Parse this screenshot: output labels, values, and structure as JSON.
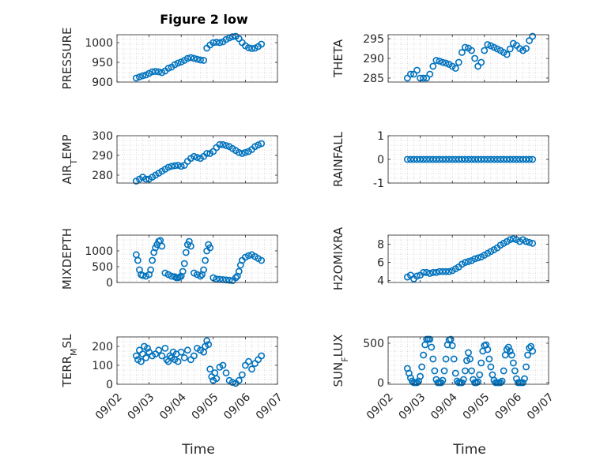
{
  "figure": {
    "title": "Figure 2 low",
    "xlabel": "Time"
  },
  "style": {
    "marker_color": "#0072BD",
    "axis_color": "#262626",
    "grid_color": "#d0d0d0"
  },
  "chart_data": [
    {
      "type": "scatter",
      "ylabel": "PRESSURE",
      "ylim": [
        900,
        1020
      ],
      "yticks": [
        900,
        950,
        1000
      ],
      "xlim": [
        2,
        7
      ],
      "xticks": [],
      "x": [
        2.6,
        2.7,
        2.8,
        2.9,
        3.0,
        3.1,
        3.2,
        3.3,
        3.4,
        3.5,
        3.6,
        3.7,
        3.8,
        3.9,
        4.0,
        4.1,
        4.2,
        4.3,
        4.4,
        4.5,
        4.6,
        4.7,
        4.8,
        4.9,
        5.0,
        5.1,
        5.2,
        5.3,
        5.4,
        5.5,
        5.6,
        5.7,
        5.8,
        5.9,
        6.0,
        6.1,
        6.2,
        6.3,
        6.4,
        6.5
      ],
      "y": [
        910,
        913,
        916,
        918,
        922,
        926,
        927,
        926,
        924,
        928,
        935,
        938,
        944,
        948,
        951,
        955,
        960,
        962,
        960,
        958,
        956,
        955,
        986,
        994,
        1000,
        1001,
        1000,
        1002,
        1008,
        1012,
        1015,
        1016,
        1010,
        1000,
        992,
        987,
        985,
        986,
        990,
        996
      ]
    },
    {
      "type": "scatter",
      "ylabel": "THETA",
      "ylim": [
        284,
        296
      ],
      "yticks": [
        285,
        290,
        295
      ],
      "xlim": [
        2,
        7
      ],
      "xticks": [],
      "x": [
        2.6,
        2.7,
        2.8,
        2.9,
        3.0,
        3.1,
        3.2,
        3.3,
        3.4,
        3.5,
        3.6,
        3.7,
        3.8,
        3.9,
        4.0,
        4.1,
        4.2,
        4.3,
        4.4,
        4.5,
        4.6,
        4.7,
        4.8,
        4.9,
        5.0,
        5.1,
        5.2,
        5.3,
        5.4,
        5.5,
        5.6,
        5.7,
        5.8,
        5.9,
        6.0,
        6.1,
        6.2,
        6.3,
        6.4,
        6.5
      ],
      "y": [
        285,
        286,
        286,
        287,
        285,
        285,
        285,
        286,
        288,
        289.5,
        289.3,
        289,
        288.8,
        288.5,
        288,
        287.5,
        289,
        291.5,
        292.8,
        292.6,
        292,
        290,
        288,
        289,
        292,
        293.5,
        293.2,
        292.8,
        292.4,
        292,
        291.5,
        291,
        292.4,
        293.8,
        293.3,
        292.5,
        292,
        292.5,
        294.5,
        295.6
      ]
    },
    {
      "type": "scatter",
      "ylabel": "AIR_T_EMP",
      "ylim": [
        276,
        300
      ],
      "yticks": [
        280,
        290,
        300
      ],
      "xlim": [
        2,
        7
      ],
      "xticks": [],
      "x": [
        2.6,
        2.7,
        2.8,
        2.9,
        3.0,
        3.1,
        3.2,
        3.3,
        3.4,
        3.5,
        3.6,
        3.7,
        3.8,
        3.9,
        4.0,
        4.1,
        4.2,
        4.3,
        4.4,
        4.5,
        4.6,
        4.7,
        4.8,
        4.9,
        5.0,
        5.1,
        5.2,
        5.3,
        5.4,
        5.5,
        5.6,
        5.7,
        5.8,
        5.9,
        6.0,
        6.1,
        6.2,
        6.3,
        6.4,
        6.5
      ],
      "y": [
        277,
        278,
        279,
        278,
        278,
        279,
        280,
        281,
        282,
        283,
        284,
        284.5,
        284.8,
        285,
        284.5,
        285,
        287,
        288.5,
        289.5,
        289,
        288.5,
        289.5,
        291,
        291,
        292,
        294,
        295.5,
        295.5,
        295,
        294.5,
        293.5,
        292.5,
        291.5,
        291,
        291.5,
        292,
        293,
        294.5,
        295.3,
        296
      ]
    },
    {
      "type": "scatter",
      "ylabel": "RAINFALL",
      "ylim": [
        -1,
        1
      ],
      "yticks": [
        -1,
        0,
        1
      ],
      "xlim": [
        2,
        7
      ],
      "xticks": [],
      "x": [
        2.6,
        2.7,
        2.8,
        2.9,
        3.0,
        3.1,
        3.2,
        3.3,
        3.4,
        3.5,
        3.6,
        3.7,
        3.8,
        3.9,
        4.0,
        4.1,
        4.2,
        4.3,
        4.4,
        4.5,
        4.6,
        4.7,
        4.8,
        4.9,
        5.0,
        5.1,
        5.2,
        5.3,
        5.4,
        5.5,
        5.6,
        5.7,
        5.8,
        5.9,
        6.0,
        6.1,
        6.2,
        6.3,
        6.4,
        6.5
      ],
      "y": [
        0,
        0,
        0,
        0,
        0,
        0,
        0,
        0,
        0,
        0,
        0,
        0,
        0,
        0,
        0,
        0,
        0,
        0,
        0,
        0,
        0,
        0,
        0,
        0,
        0,
        0,
        0,
        0,
        0,
        0,
        0,
        0,
        0,
        0,
        0,
        0,
        0,
        0,
        0,
        0
      ]
    },
    {
      "type": "scatter",
      "ylabel": "MIXDEPTH",
      "ylim": [
        0,
        1500
      ],
      "yticks": [
        0,
        500,
        1000
      ],
      "xlim": [
        2,
        7
      ],
      "xticks": [],
      "x": [
        2.6,
        2.65,
        2.7,
        2.75,
        2.8,
        2.9,
        3.0,
        3.05,
        3.1,
        3.15,
        3.2,
        3.25,
        3.3,
        3.35,
        3.4,
        3.5,
        3.6,
        3.7,
        3.8,
        3.85,
        3.9,
        3.95,
        4.0,
        4.05,
        4.1,
        4.15,
        4.2,
        4.25,
        4.3,
        4.4,
        4.5,
        4.6,
        4.65,
        4.7,
        4.75,
        4.8,
        4.85,
        4.9,
        5.0,
        5.1,
        5.2,
        5.3,
        5.4,
        5.5,
        5.6,
        5.7,
        5.75,
        5.8,
        5.85,
        5.9,
        6.0,
        6.1,
        6.2,
        6.3,
        6.4,
        6.5
      ],
      "y": [
        880,
        700,
        400,
        250,
        220,
        200,
        250,
        400,
        700,
        950,
        1100,
        1200,
        1300,
        1330,
        1150,
        300,
        250,
        200,
        180,
        150,
        150,
        170,
        200,
        350,
        600,
        950,
        1200,
        1300,
        1150,
        300,
        250,
        200,
        250,
        400,
        700,
        1000,
        1200,
        1100,
        150,
        110,
        100,
        90,
        80,
        70,
        60,
        150,
        200,
        350,
        550,
        700,
        800,
        850,
        880,
        820,
        760,
        700
      ]
    },
    {
      "type": "scatter",
      "ylabel": "H2OMIXRA",
      "ylim": [
        3.8,
        9
      ],
      "yticks": [
        4,
        6,
        8
      ],
      "xlim": [
        2,
        7
      ],
      "xticks": [],
      "x": [
        2.6,
        2.7,
        2.8,
        2.9,
        3.0,
        3.1,
        3.2,
        3.3,
        3.4,
        3.5,
        3.6,
        3.7,
        3.8,
        3.9,
        4.0,
        4.1,
        4.2,
        4.3,
        4.4,
        4.5,
        4.6,
        4.7,
        4.8,
        4.9,
        5.0,
        5.1,
        5.2,
        5.3,
        5.4,
        5.5,
        5.6,
        5.7,
        5.8,
        5.9,
        6.0,
        6.1,
        6.2,
        6.3,
        6.4,
        6.5
      ],
      "y": [
        4.4,
        4.6,
        4.2,
        4.5,
        4.6,
        4.9,
        4.9,
        4.8,
        4.9,
        4.9,
        5.0,
        5.0,
        5.0,
        5.0,
        5.1,
        5.3,
        5.5,
        5.8,
        6.0,
        6.1,
        6.2,
        6.4,
        6.5,
        6.6,
        6.8,
        7.0,
        7.2,
        7.4,
        7.6,
        7.9,
        8.1,
        8.3,
        8.5,
        8.6,
        8.5,
        8.3,
        8.5,
        8.3,
        8.2,
        8.1
      ]
    },
    {
      "type": "scatter",
      "ylabel": "TERR_M_SL",
      "ylim": [
        0,
        250
      ],
      "yticks": [
        0,
        100,
        200
      ],
      "xlim": [
        2,
        7
      ],
      "xticks": [
        "09/02",
        "09/03",
        "09/04",
        "09/05",
        "09/06",
        "09/07"
      ],
      "x": [
        2.6,
        2.65,
        2.7,
        2.75,
        2.8,
        2.85,
        2.9,
        2.95,
        3.0,
        3.1,
        3.2,
        3.3,
        3.4,
        3.5,
        3.55,
        3.6,
        3.65,
        3.7,
        3.75,
        3.8,
        3.85,
        3.9,
        4.0,
        4.1,
        4.2,
        4.3,
        4.4,
        4.5,
        4.6,
        4.7,
        4.75,
        4.8,
        4.85,
        4.9,
        4.95,
        5.0,
        5.05,
        5.1,
        5.2,
        5.3,
        5.4,
        5.5,
        5.6,
        5.7,
        5.8,
        5.9,
        6.0,
        6.1,
        6.2,
        6.3,
        6.4,
        6.5
      ],
      "y": [
        150,
        130,
        180,
        120,
        160,
        200,
        140,
        190,
        170,
        150,
        160,
        180,
        150,
        190,
        130,
        120,
        150,
        140,
        170,
        130,
        160,
        120,
        170,
        140,
        180,
        130,
        150,
        190,
        180,
        170,
        200,
        230,
        210,
        80,
        40,
        20,
        60,
        30,
        90,
        100,
        60,
        20,
        10,
        5,
        20,
        50,
        100,
        120,
        80,
        110,
        130,
        150
      ]
    },
    {
      "type": "scatter",
      "ylabel": "SUN_F_LUX",
      "ylim": [
        -20,
        580
      ],
      "yticks": [
        0,
        500
      ],
      "xlim": [
        2,
        7
      ],
      "xticks": [
        "09/02",
        "09/03",
        "09/04",
        "09/05",
        "09/06",
        "09/07"
      ],
      "x": [
        2.6,
        2.65,
        2.7,
        2.75,
        2.8,
        2.85,
        2.9,
        2.95,
        3.0,
        3.05,
        3.1,
        3.15,
        3.2,
        3.25,
        3.3,
        3.35,
        3.4,
        3.45,
        3.5,
        3.55,
        3.6,
        3.65,
        3.7,
        3.75,
        3.8,
        3.85,
        3.9,
        3.95,
        4.0,
        4.05,
        4.1,
        4.15,
        4.2,
        4.25,
        4.3,
        4.35,
        4.4,
        4.45,
        4.5,
        4.55,
        4.6,
        4.65,
        4.7,
        4.75,
        4.8,
        4.85,
        4.9,
        4.95,
        5.0,
        5.05,
        5.1,
        5.15,
        5.2,
        5.25,
        5.3,
        5.35,
        5.4,
        5.45,
        5.5,
        5.55,
        5.6,
        5.65,
        5.7,
        5.75,
        5.8,
        5.85,
        5.9,
        5.95,
        6.0,
        6.05,
        6.1,
        6.15,
        6.2,
        6.25,
        6.3,
        6.35,
        6.4,
        6.45,
        6.5
      ],
      "y": [
        180,
        120,
        60,
        20,
        0,
        0,
        0,
        20,
        80,
        200,
        350,
        480,
        550,
        550,
        550,
        450,
        300,
        150,
        40,
        0,
        0,
        0,
        30,
        150,
        300,
        480,
        540,
        550,
        470,
        300,
        120,
        20,
        0,
        0,
        0,
        40,
        150,
        280,
        380,
        300,
        150,
        40,
        0,
        0,
        10,
        100,
        250,
        400,
        470,
        480,
        420,
        300,
        200,
        100,
        30,
        0,
        0,
        0,
        0,
        20,
        150,
        350,
        420,
        450,
        400,
        350,
        250,
        150,
        50,
        0,
        0,
        0,
        0,
        50,
        200,
        350,
        440,
        460,
        400
      ]
    }
  ]
}
